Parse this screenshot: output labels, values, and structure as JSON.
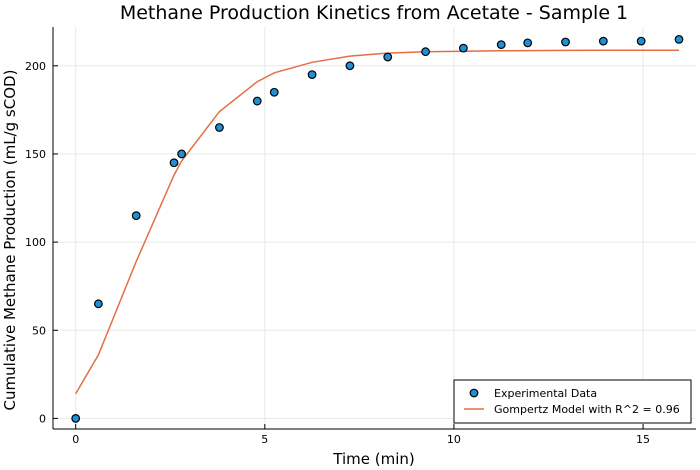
{
  "chart_data": {
    "type": "scatter",
    "title": "Methane Production Kinetics from Acetate - Sample 1",
    "xlabel": "Time (min)",
    "ylabel": "Cumulative Methane Production (mL/g sCOD)",
    "xlim": [
      -0.6,
      16.4
    ],
    "ylim": [
      -6,
      222
    ],
    "xticks": [
      0,
      5,
      10,
      15
    ],
    "yticks": [
      0,
      50,
      100,
      150,
      200
    ],
    "grid": true,
    "legend_position": "bottom-right",
    "colors": {
      "scatter": "#1f8fd8",
      "line": "#e26f46",
      "axis": "#000000",
      "grid": "#e8e8e8"
    },
    "series": [
      {
        "name": "Experimental Data",
        "kind": "scatter",
        "x": [
          0,
          0.6,
          1.6,
          2.6,
          2.8,
          3.8,
          4.8,
          5.25,
          6.25,
          7.25,
          8.25,
          9.25,
          10.25,
          11.25,
          11.95,
          12.95,
          13.95,
          14.95,
          15.95
        ],
        "y": [
          0,
          65,
          115,
          145,
          150,
          165,
          180,
          185,
          195,
          200,
          205,
          208,
          210,
          212,
          213,
          213.5,
          214,
          214,
          215
        ]
      },
      {
        "name": "Gompertz Model with R^2 = 0.96",
        "kind": "line",
        "x": [
          0,
          0.6,
          1.6,
          2.6,
          2.8,
          3.8,
          4.8,
          5.25,
          6.25,
          7.25,
          8.25,
          9.25,
          10.25,
          11.25,
          11.95,
          12.95,
          13.95,
          14.95,
          15.95
        ],
        "y": [
          14,
          36,
          89,
          138,
          146,
          174,
          191,
          196,
          202,
          205.5,
          207.2,
          208,
          208.3,
          208.5,
          208.6,
          208.7,
          208.8,
          208.8,
          208.8
        ]
      }
    ]
  }
}
